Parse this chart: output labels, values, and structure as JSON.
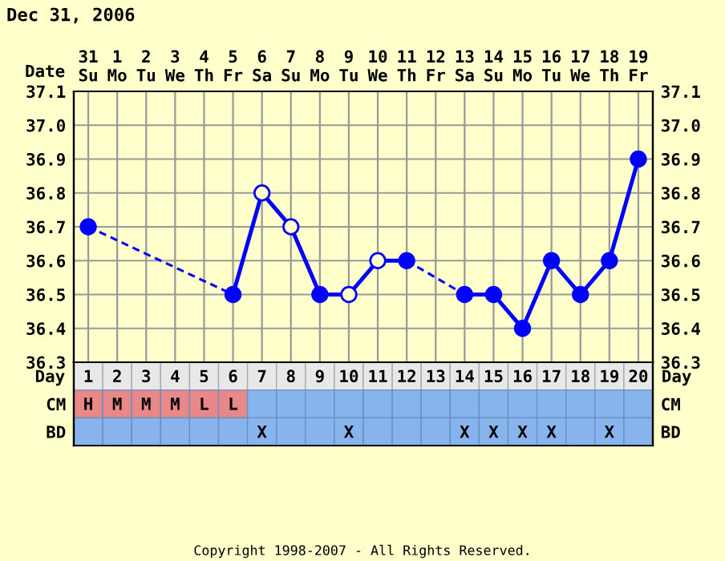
{
  "chart_data": [
    {
      "type": "line",
      "title": "Dec 31, 2006",
      "xlabel": "Date",
      "categories": [
        "31\nSu",
        "1\nMo",
        "2\nTu",
        "3\nWe",
        "4\nTh",
        "5\nFr",
        "6\nSa",
        "7\nSu",
        "8\nMo",
        "9\nTu",
        "10\nWe",
        "11\nTh",
        "12\nFr",
        "13\nSa",
        "14\nSu",
        "15\nMo",
        "16\nTu",
        "17\nWe",
        "18\nTh",
        "19\nFr"
      ],
      "series": [
        {
          "color": "#0000ff",
          "values": [
            36.7,
            null,
            null,
            null,
            null,
            36.5,
            36.8,
            36.7,
            36.5,
            36.5,
            36.6,
            36.6,
            null,
            36.5,
            36.5,
            36.4,
            36.6,
            36.5,
            36.6,
            36.9
          ],
          "colors": [
            "#0000ff",
            "#0000ff",
            "#0000ff",
            "#0000ff",
            "#0000ff",
            "#0000ff",
            "#ffffcc",
            "#ffffcc",
            "#0000ff",
            "#ffffcc",
            "#ffffcc",
            "#0000ff",
            "#0000ff",
            "#0000ff",
            "#0000ff",
            "#0000ff",
            "#0000ff",
            "#0000ff",
            "#0000ff",
            "#0000ff"
          ]
        }
      ],
      "marker": "circle",
      "grid": true,
      "ylim": [
        36.3,
        37.1
      ],
      "yticks": [
        {
          "value": 36.3,
          "label": "36.3"
        },
        {
          "value": 36.4,
          "label": "36.4"
        },
        {
          "value": 36.5,
          "label": "36.5"
        },
        {
          "value": 36.6,
          "label": "36.6"
        },
        {
          "value": 36.7,
          "label": "36.7"
        },
        {
          "value": 36.8,
          "label": "36.8"
        },
        {
          "value": 36.9,
          "label": "36.9"
        },
        {
          "value": 37.0,
          "label": "37.0"
        },
        {
          "value": 37.1,
          "label": "37.1"
        }
      ],
      "y2lim": [
        36.3,
        37.1
      ],
      "y2ticks": [
        {
          "value": 36.3,
          "label": "36.3"
        },
        {
          "value": 36.4,
          "label": "36.4"
        },
        {
          "value": 36.5,
          "label": "36.5"
        },
        {
          "value": 36.6,
          "label": "36.6"
        },
        {
          "value": 36.7,
          "label": "36.7"
        },
        {
          "value": 36.8,
          "label": "36.8"
        },
        {
          "value": 36.9,
          "label": "36.9"
        },
        {
          "value": 37.0,
          "label": "37.0"
        },
        {
          "value": 37.1,
          "label": "37.1"
        }
      ],
      "annotations": [
        "Copyright 1998-2007 - All Rights Reserved."
      ]
    },
    {
      "type": "heatmap",
      "xlabel": "Day",
      "categories": [
        "1",
        "2",
        "3",
        "4",
        "5",
        "6",
        "7",
        "8",
        "9",
        "10",
        "11",
        "12",
        "13",
        "14",
        "15",
        "16",
        "17",
        "18",
        "19",
        "20"
      ],
      "y_categories": [
        "CM",
        "BD"
      ],
      "y2_categories": [
        "CM",
        "BD"
      ],
      "cells": [
        [
          null,
          null,
          null,
          null,
          null,
          null,
          null,
          null,
          null,
          null,
          null,
          null,
          null,
          null,
          null,
          null,
          null,
          null,
          null,
          null
        ],
        [
          null,
          null,
          null,
          null,
          null,
          null,
          null,
          null,
          null,
          null,
          null,
          null,
          null,
          null,
          null,
          null,
          null,
          null,
          null,
          null
        ]
      ],
      "cell_labels": [
        [
          "H",
          "M",
          "M",
          "M",
          "L",
          "L",
          null,
          null,
          null,
          null,
          null,
          null,
          null,
          null,
          null,
          null,
          null,
          null,
          null,
          null
        ],
        [
          null,
          null,
          null,
          null,
          null,
          null,
          "X",
          null,
          null,
          "X",
          null,
          null,
          null,
          "X",
          "X",
          "X",
          "X",
          null,
          "X",
          null
        ]
      ],
      "colors": [
        [
          "#e88888",
          "#e88888",
          "#e88888",
          "#e88888",
          "#e88888",
          "#e88888",
          "#88b4ee",
          "#88b4ee",
          "#88b4ee",
          "#88b4ee",
          "#88b4ee",
          "#88b4ee",
          "#88b4ee",
          "#88b4ee",
          "#88b4ee",
          "#88b4ee",
          "#88b4ee",
          "#88b4ee",
          "#88b4ee",
          "#88b4ee"
        ],
        [
          "#88b4ee",
          "#88b4ee",
          "#88b4ee",
          "#88b4ee",
          "#88b4ee",
          "#88b4ee",
          "#88b4ee",
          "#88b4ee",
          "#88b4ee",
          "#88b4ee",
          "#88b4ee",
          "#88b4ee",
          "#88b4ee",
          "#88b4ee",
          "#88b4ee",
          "#88b4ee",
          "#88b4ee",
          "#88b4ee",
          "#88b4ee",
          "#88b4ee"
        ]
      ]
    }
  ]
}
